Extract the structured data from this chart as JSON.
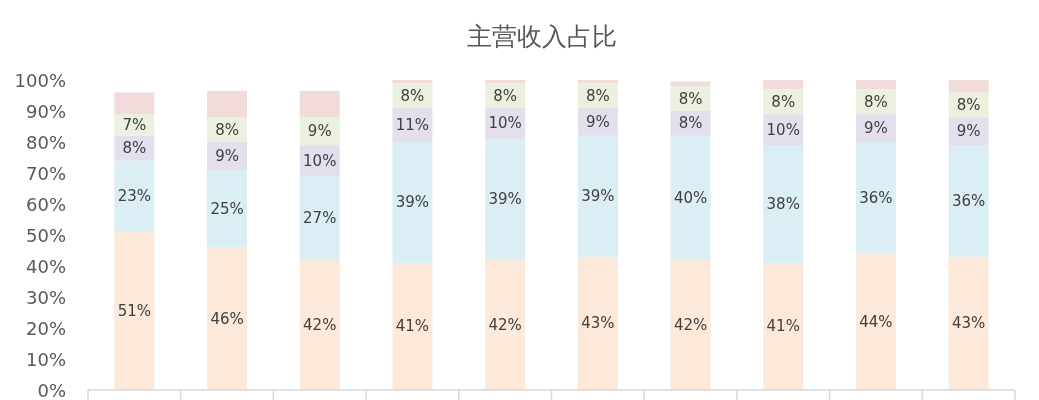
{
  "chart_data": {
    "type": "bar",
    "stacked": true,
    "title": "主营收入占比",
    "categories": [
      null,
      null,
      null,
      null,
      null,
      null,
      null,
      null,
      null,
      null
    ],
    "series": [
      {
        "color": "#fde9d9",
        "values": [
          51,
          46,
          42,
          41,
          42,
          43,
          42,
          41,
          44,
          43
        ],
        "value_labels": [
          "51%",
          "46%",
          "42%",
          "41%",
          "42%",
          "43%",
          "42%",
          "41%",
          "44%",
          "43%"
        ]
      },
      {
        "color": "#daeef3",
        "values": [
          23,
          25,
          27,
          39,
          39,
          39,
          40,
          38,
          36,
          36
        ],
        "value_labels": [
          "23%",
          "25%",
          "27%",
          "39%",
          "39%",
          "39%",
          "40%",
          "38%",
          "36%",
          "36%"
        ]
      },
      {
        "color": "#e4dfec",
        "values": [
          8,
          9,
          10,
          11,
          10,
          9,
          8,
          10,
          9,
          9
        ],
        "value_labels": [
          "8%",
          "9%",
          "10%",
          "11%",
          "10%",
          "9%",
          "8%",
          "10%",
          "9%",
          "9%"
        ]
      },
      {
        "color": "#ebf1de",
        "values": [
          7,
          8,
          9,
          8,
          8,
          8,
          8,
          8,
          8,
          8
        ],
        "value_labels": [
          "7%",
          "8%",
          "9%",
          "8%",
          "8%",
          "8%",
          "8%",
          "8%",
          "8%",
          "8%"
        ]
      },
      {
        "color": "#f2dcdb",
        "values": [
          7,
          8.5,
          8.5,
          1,
          1,
          1,
          1.5,
          3,
          3,
          4
        ]
      }
    ],
    "ylim": [
      0,
      100
    ],
    "yticks": [
      {
        "value": 0,
        "label": "0%"
      },
      {
        "value": 10,
        "label": "10%"
      },
      {
        "value": 20,
        "label": "20%"
      },
      {
        "value": 30,
        "label": "30%"
      },
      {
        "value": 40,
        "label": "40%"
      },
      {
        "value": 50,
        "label": "50%"
      },
      {
        "value": 60,
        "label": "60%"
      },
      {
        "value": 70,
        "label": "70%"
      },
      {
        "value": 80,
        "label": "80%"
      },
      {
        "value": 90,
        "label": "90%"
      },
      {
        "value": 100,
        "label": "100%"
      }
    ],
    "grid": false
  }
}
